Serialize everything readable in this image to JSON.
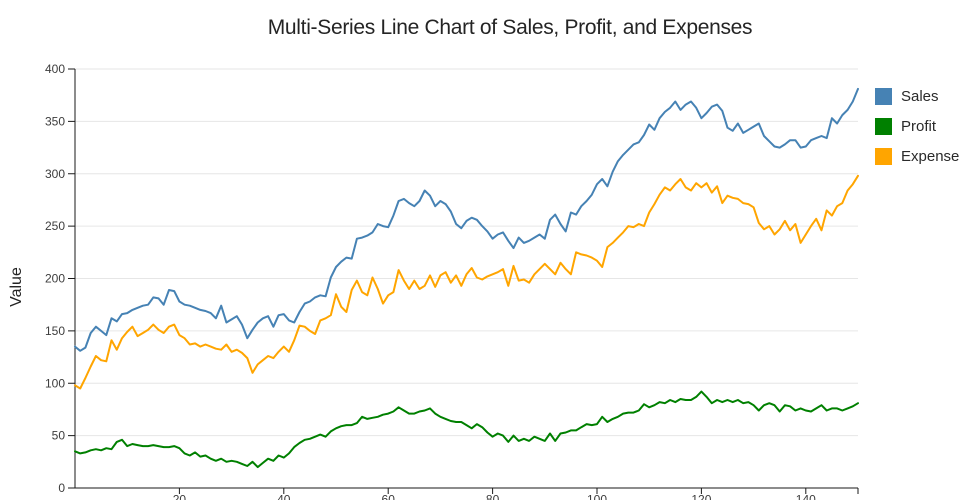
{
  "chart_data": {
    "type": "line",
    "title": "Multi-Series Line Chart of Sales, Profit, and Expenses",
    "xlabel": "",
    "ylabel": "Value",
    "x_range": [
      0,
      150
    ],
    "ylim": [
      0,
      400
    ],
    "x_ticks": [
      20,
      40,
      60,
      80,
      100,
      120,
      140
    ],
    "y_ticks": [
      0,
      50,
      100,
      150,
      200,
      250,
      300,
      350,
      400
    ],
    "grid": "horizontal",
    "legend_position": "top-right-outside",
    "background_color": "#ffffff",
    "grid_color": "#e6e6e6",
    "axis_color": "#1a1a1a",
    "tick_label_color": "#3d3d3d",
    "series": [
      {
        "name": "Sales",
        "color": "#4682B4",
        "values": [
          135,
          131,
          134,
          148,
          154,
          150,
          146,
          162,
          159,
          166,
          167,
          170,
          172,
          174,
          175,
          182,
          181,
          175,
          189,
          188,
          178,
          175,
          174,
          172,
          170,
          169,
          167,
          162,
          174,
          158,
          161,
          164,
          156,
          143,
          151,
          158,
          162,
          164,
          154,
          165,
          166,
          160,
          158,
          168,
          176,
          178,
          182,
          184,
          183,
          201,
          211,
          216,
          220,
          219,
          238,
          239,
          241,
          244,
          252,
          250,
          249,
          260,
          274,
          276,
          272,
          269,
          274,
          284,
          279,
          269,
          274,
          271,
          264,
          252,
          248,
          255,
          258,
          256,
          250,
          245,
          238,
          242,
          244,
          236,
          229,
          239,
          234,
          236,
          239,
          242,
          238,
          256,
          261,
          252,
          245,
          263,
          261,
          269,
          274,
          280,
          290,
          295,
          288,
          302,
          312,
          318,
          323,
          328,
          330,
          337,
          347,
          342,
          353,
          359,
          363,
          369,
          361,
          366,
          369,
          363,
          353,
          358,
          364,
          366,
          360,
          344,
          341,
          348,
          339,
          342,
          345,
          348,
          336,
          331,
          326,
          325,
          328,
          332,
          332,
          325,
          326,
          332,
          334,
          336,
          334,
          353,
          348,
          356,
          361,
          369,
          381
        ]
      },
      {
        "name": "Profit",
        "color": "#008000",
        "values": [
          35,
          33,
          34,
          36,
          37,
          36,
          38,
          37,
          44,
          46,
          40,
          42,
          41,
          40,
          40,
          41,
          40,
          39,
          39,
          40,
          38,
          33,
          31,
          34,
          30,
          31,
          28,
          26,
          28,
          25,
          26,
          25,
          23,
          21,
          25,
          20,
          24,
          28,
          26,
          31,
          29,
          33,
          39,
          43,
          46,
          47,
          49,
          51,
          49,
          54,
          57,
          59,
          60,
          60,
          62,
          68,
          66,
          67,
          68,
          70,
          71,
          73,
          77,
          74,
          71,
          71,
          73,
          74,
          76,
          71,
          68,
          66,
          64,
          63,
          63,
          60,
          57,
          61,
          58,
          53,
          49,
          52,
          50,
          44,
          50,
          45,
          47,
          45,
          49,
          47,
          45,
          52,
          45,
          52,
          53,
          55,
          55,
          58,
          61,
          60,
          61,
          68,
          63,
          66,
          68,
          71,
          72,
          72,
          74,
          80,
          77,
          79,
          82,
          81,
          84,
          82,
          85,
          84,
          84,
          87,
          92,
          87,
          81,
          84,
          82,
          84,
          82,
          84,
          81,
          82,
          79,
          74,
          79,
          81,
          79,
          73,
          79,
          78,
          74,
          76,
          74,
          73,
          76,
          79,
          74,
          76,
          76,
          74,
          76,
          78,
          81
        ]
      },
      {
        "name": "Expense",
        "color": "#FFA500",
        "values": [
          98,
          95,
          105,
          116,
          126,
          122,
          121,
          141,
          132,
          143,
          149,
          154,
          145,
          148,
          151,
          156,
          151,
          148,
          154,
          156,
          146,
          143,
          137,
          138,
          135,
          137,
          135,
          133,
          132,
          137,
          130,
          132,
          129,
          124,
          110,
          118,
          122,
          126,
          124,
          130,
          135,
          130,
          141,
          155,
          154,
          150,
          147,
          160,
          162,
          165,
          185,
          173,
          168,
          189,
          198,
          187,
          184,
          201,
          190,
          176,
          184,
          187,
          208,
          198,
          190,
          198,
          190,
          193,
          203,
          192,
          203,
          206,
          196,
          203,
          193,
          204,
          210,
          201,
          199,
          202,
          204,
          206,
          209,
          193,
          212,
          198,
          199,
          196,
          204,
          209,
          214,
          209,
          204,
          215,
          209,
          204,
          225,
          223,
          222,
          220,
          217,
          211,
          230,
          234,
          239,
          244,
          250,
          249,
          252,
          250,
          263,
          271,
          280,
          287,
          284,
          290,
          295,
          287,
          284,
          291,
          287,
          291,
          282,
          288,
          272,
          279,
          277,
          276,
          272,
          271,
          268,
          253,
          247,
          250,
          242,
          247,
          255,
          246,
          252,
          234,
          242,
          250,
          257,
          246,
          265,
          260,
          269,
          272,
          284,
          290,
          298
        ]
      }
    ]
  }
}
